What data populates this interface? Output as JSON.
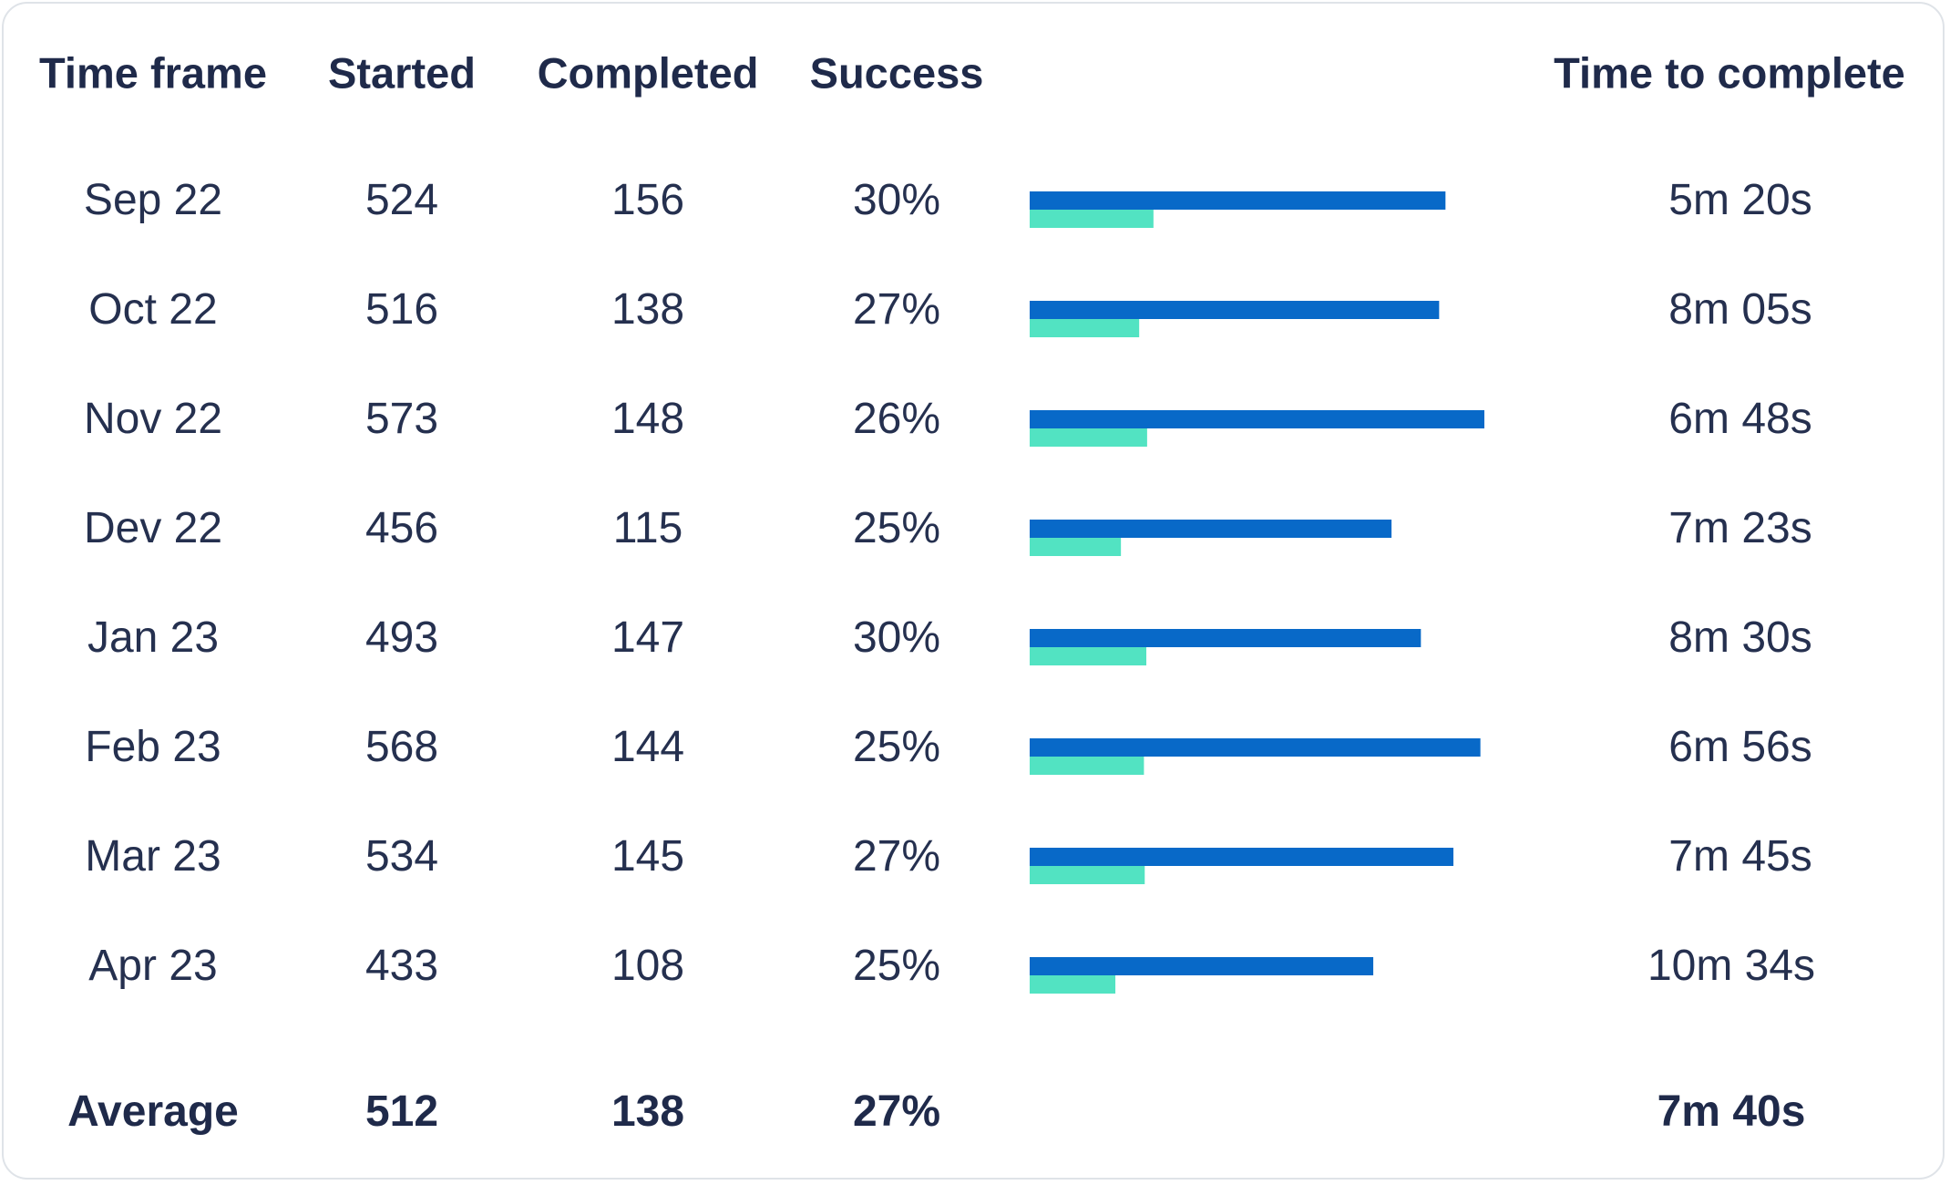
{
  "headers": {
    "time_frame": "Time frame",
    "started": "Started",
    "completed": "Completed",
    "success": "Success",
    "time_to_complete": "Time to complete"
  },
  "rows": [
    {
      "time_frame": "Sep 22",
      "started": "524",
      "completed": "156",
      "success": "30%",
      "time": "5m 20s"
    },
    {
      "time_frame": "Oct 22",
      "started": "516",
      "completed": "138",
      "success": "27%",
      "time": "8m 05s"
    },
    {
      "time_frame": "Nov 22",
      "started": "573",
      "completed": "148",
      "success": "26%",
      "time": "6m 48s"
    },
    {
      "time_frame": "Dev 22",
      "started": "456",
      "completed": "115",
      "success": "25%",
      "time": "7m 23s"
    },
    {
      "time_frame": "Jan 23",
      "started": "493",
      "completed": "147",
      "success": "30%",
      "time": "8m 30s"
    },
    {
      "time_frame": "Feb 23",
      "started": "568",
      "completed": "144",
      "success": "25%",
      "time": "6m 56s"
    },
    {
      "time_frame": "Mar 23",
      "started": "534",
      "completed": "145",
      "success": "27%",
      "time": "7m 45s"
    },
    {
      "time_frame": "Apr 23",
      "started": "433",
      "completed": "108",
      "success": "25%",
      "time": "10m 34s"
    }
  ],
  "average": {
    "label": "Average",
    "started": "512",
    "completed": "138",
    "success": "27%",
    "time": "7m 40s"
  },
  "chart_data": {
    "type": "bar",
    "orientation": "horizontal",
    "categories": [
      "Sep 22",
      "Oct 22",
      "Nov 22",
      "Dev 22",
      "Jan 23",
      "Feb 23",
      "Mar 23",
      "Apr 23"
    ],
    "series": [
      {
        "values": [
          524,
          516,
          573,
          456,
          493,
          568,
          534,
          433
        ],
        "color": "#0869c8"
      },
      {
        "values": [
          156,
          138,
          148,
          115,
          147,
          144,
          145,
          108
        ],
        "color": "#52e3c2"
      }
    ],
    "xlim": [
      0,
      573
    ],
    "grid": false
  },
  "colors": {
    "text": "#25304f",
    "border": "#dfe3e8",
    "started_bar": "#0869c8",
    "completed_bar": "#52e3c2"
  }
}
